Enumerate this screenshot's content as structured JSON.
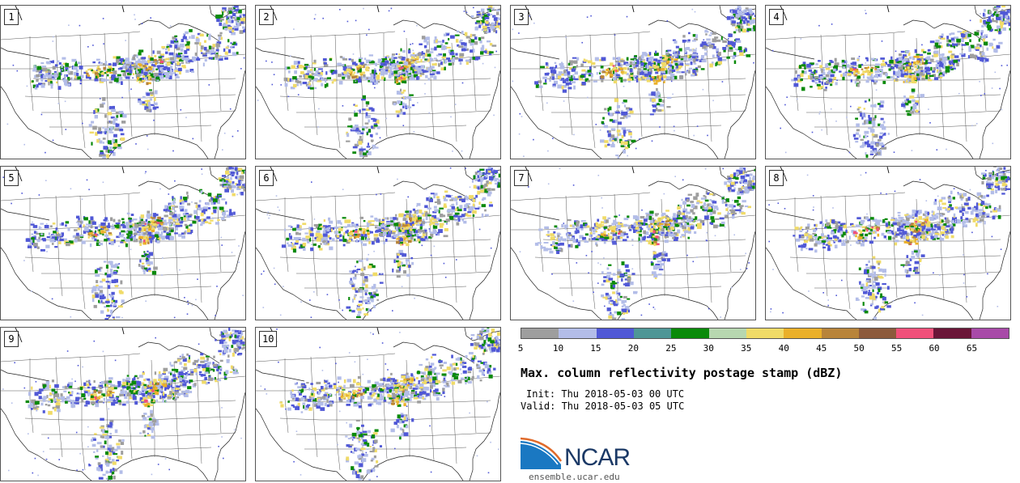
{
  "panels": [
    {
      "label": "1"
    },
    {
      "label": "2"
    },
    {
      "label": "3"
    },
    {
      "label": "4"
    },
    {
      "label": "5"
    },
    {
      "label": "6"
    },
    {
      "label": "7"
    },
    {
      "label": "8"
    },
    {
      "label": "9"
    },
    {
      "label": "10"
    }
  ],
  "colorbar": {
    "colors": [
      "#9e9e9e",
      "#b3bde8",
      "#5058d6",
      "#4f9696",
      "#0a8a0a",
      "#b7d7b0",
      "#f0db68",
      "#eab02a",
      "#b8843a",
      "#8c5a3c",
      "#f0507a",
      "#6a1638",
      "#a84aa8"
    ],
    "ticks": [
      "5",
      "10",
      "15",
      "20",
      "25",
      "30",
      "35",
      "40",
      "45",
      "50",
      "55",
      "60",
      "65"
    ]
  },
  "title": "Max. column reflectivity postage stamp (dBZ)",
  "init": "Init: Thu 2018-05-03 00 UTC",
  "valid": "Valid: Thu 2018-05-03 05 UTC",
  "logo": {
    "text": "NCAR",
    "url": "ensemble.ucar.edu"
  }
}
